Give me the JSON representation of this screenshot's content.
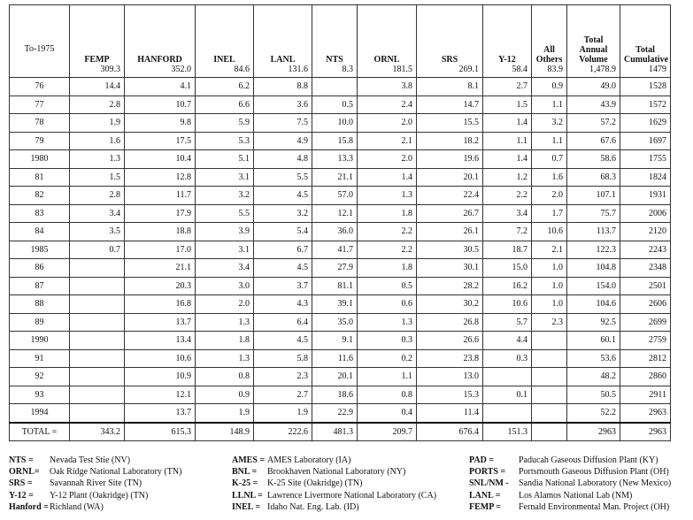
{
  "header": {
    "corner": "To-1975",
    "columns": [
      {
        "name": "FEMP",
        "value": "309.3"
      },
      {
        "name": "HANFORD",
        "value": "352.0"
      },
      {
        "name": "INEL",
        "value": "84.6"
      },
      {
        "name": "LANL",
        "value": "131.6"
      },
      {
        "name": "NTS",
        "value": "8.3"
      },
      {
        "name": "ORNL",
        "value": "181.5"
      },
      {
        "name": "SRS",
        "value": "269.1"
      },
      {
        "name": "Y-12",
        "value": "58.4"
      },
      {
        "name": "All Others",
        "value": "83.9"
      },
      {
        "name": "Total Annual Volume",
        "value": "1,478.9"
      },
      {
        "name": "Total Cumulative",
        "value": "1479"
      }
    ]
  },
  "table": {
    "rows": [
      [
        "76",
        "14.4",
        "4.1",
        "6.2",
        "8.8",
        null,
        "3.8",
        "8.1",
        "2.7",
        "0.9",
        "49.0",
        "1528"
      ],
      [
        "77",
        "2.8",
        "10.7",
        "6.6",
        "3.6",
        "0.5",
        "2.4",
        "14.7",
        "1.5",
        "1.1",
        "43.9",
        "1572"
      ],
      [
        "78",
        "1.9",
        "9.8",
        "5.9",
        "7.5",
        "10.0",
        "2.0",
        "15.5",
        "1.4",
        "3.2",
        "57.2",
        "1629"
      ],
      [
        "79",
        "1.6",
        "17.5",
        "5.3",
        "4.9",
        "15.8",
        "2.1",
        "18.2",
        "1.1",
        "1.1",
        "67.6",
        "1697"
      ],
      [
        "1980",
        "1.3",
        "10.4",
        "5.1",
        "4.8",
        "13.3",
        "2.0",
        "19.6",
        "1.4",
        "0.7",
        "58.6",
        "1755"
      ],
      [
        "81",
        "1.5",
        "12.8",
        "3.1",
        "5.5",
        "21.1",
        "1.4",
        "20.1",
        "1.2",
        "1.6",
        "68.3",
        "1824"
      ],
      [
        "82",
        "2.8",
        "11.7",
        "3.2",
        "4.5",
        "57.0",
        "1.3",
        "22.4",
        "2.2",
        "2.0",
        "107.1",
        "1931"
      ],
      [
        "83",
        "3.4",
        "17.9",
        "5.5",
        "3.2",
        "12.1",
        "1.8",
        "26.7",
        "3.4",
        "1.7",
        "75.7",
        "2006"
      ],
      [
        "84",
        "3.5",
        "18.8",
        "3.9",
        "5.4",
        "36.0",
        "2.2",
        "26.1",
        "7.2",
        "10.6",
        "113.7",
        "2120"
      ],
      [
        "1985",
        "0.7",
        "17.0",
        "3.1",
        "6.7",
        "41.7",
        "2.2",
        "30.5",
        "18.7",
        "2.1",
        "122.3",
        "2243"
      ],
      [
        "86",
        null,
        "21.1",
        "3.4",
        "4.5",
        "27.9",
        "1.8",
        "30.1",
        "15.0",
        "1.0",
        "104.8",
        "2348"
      ],
      [
        "87",
        null,
        "20.3",
        "3.0",
        "3.7",
        "81.1",
        "0.5",
        "28.2",
        "16.2",
        "1.0",
        "154.0",
        "2501"
      ],
      [
        "88",
        null,
        "16.8",
        "2.0",
        "4.3",
        "39.1",
        "0.6",
        "30.2",
        "10.6",
        "1.0",
        "104.6",
        "2606"
      ],
      [
        "89",
        null,
        "13.7",
        "1.3",
        "6.4",
        "35.0",
        "1.3",
        "26.8",
        "5.7",
        "2.3",
        "92.5",
        "2699"
      ],
      [
        "1990",
        null,
        "13.4",
        "1.8",
        "4.5",
        "9.1",
        "0.3",
        "26.6",
        "4.4",
        null,
        "60.1",
        "2759"
      ],
      [
        "91",
        null,
        "10.6",
        "1.3",
        "5.8",
        "11.6",
        "0.2",
        "23.8",
        "0.3",
        null,
        "53.6",
        "2812"
      ],
      [
        "92",
        null,
        "10.9",
        "0.8",
        "2.3",
        "20.1",
        "1.1",
        "13.0",
        null,
        null,
        "48.2",
        "2860"
      ],
      [
        "93",
        null,
        "12.1",
        "0.9",
        "2.7",
        "18.6",
        "0.8",
        "15.3",
        "0.1",
        null,
        "50.5",
        "2911"
      ],
      [
        "1994",
        null,
        "13.7",
        "1.9",
        "1.9",
        "22.9",
        "0.4",
        "11.4",
        null,
        null,
        "52.2",
        "2963"
      ]
    ],
    "total": [
      "TOTAL =",
      "343.2",
      "615.3",
      "148.9",
      "222.6",
      "481.3",
      "209.7",
      "676.4",
      "151.3",
      null,
      "2963",
      "2963"
    ]
  },
  "legend": [
    [
      {
        "abbr": "NTS =",
        "text": "Nevada Test Stie (NV)"
      },
      {
        "abbr": "ORNL=",
        "text": "Oak Ridge National Laboratory (TN)"
      },
      {
        "abbr": "SRS =",
        "text": "Savannah River Site (TN)"
      },
      {
        "abbr": "Y-12 =",
        "text": "Y-12 Plant (Oakridge) (TN)"
      },
      {
        "abbr": "Hanford =",
        "text": "Richland (WA)"
      }
    ],
    [
      {
        "abbr": "AMES =",
        "text": "AMES Laboratory (IA)"
      },
      {
        "abbr": "BNL =",
        "text": "Brookhaven National Laboratory (NY)"
      },
      {
        "abbr": "K-25 =",
        "text": "K-25 Site (Oakridge) (TN)"
      },
      {
        "abbr": "LLNL =",
        "text": "Lawrence Livermore National Laboratory (CA)"
      },
      {
        "abbr": "INEL =",
        "text": "Idaho Nat. Eng. Lab. (ID)"
      }
    ],
    [
      {
        "abbr": "PAD =",
        "text": "Paducah Gaseous Diffusion Plant (KY)"
      },
      {
        "abbr": "PORTS =",
        "text": "Portsmouth Gaseous Diffusion Plant (OH)"
      },
      {
        "abbr": "SNL/NM -",
        "text": "Sandia National Laboratory (New Mexico)"
      },
      {
        "abbr": "LANL =",
        "text": "Los Alamos National Lab (NM)"
      },
      {
        "abbr": "FEMP =",
        "text": "Fernald Environmental Man. Project (OH)"
      }
    ]
  ]
}
